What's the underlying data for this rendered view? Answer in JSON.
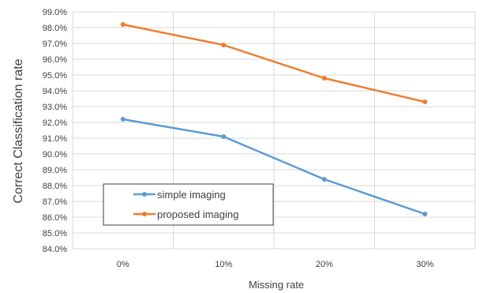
{
  "chart_data": {
    "type": "line",
    "title": "",
    "xlabel": "Missing rate",
    "ylabel": "Correct Classification rate",
    "categories": [
      "0%",
      "10%",
      "20%",
      "30%"
    ],
    "ylim": [
      84.0,
      99.0
    ],
    "ytick_step": 1.0,
    "ytick_format": "percent_1dp",
    "grid": true,
    "legend_position": "bottom-left",
    "series": [
      {
        "name": "simple imaging",
        "color": "#5B9BD5",
        "values": [
          92.2,
          91.1,
          88.4,
          86.2
        ]
      },
      {
        "name": "proposed imaging",
        "color": "#ED7D31",
        "values": [
          98.2,
          96.9,
          94.8,
          93.3
        ]
      }
    ]
  }
}
